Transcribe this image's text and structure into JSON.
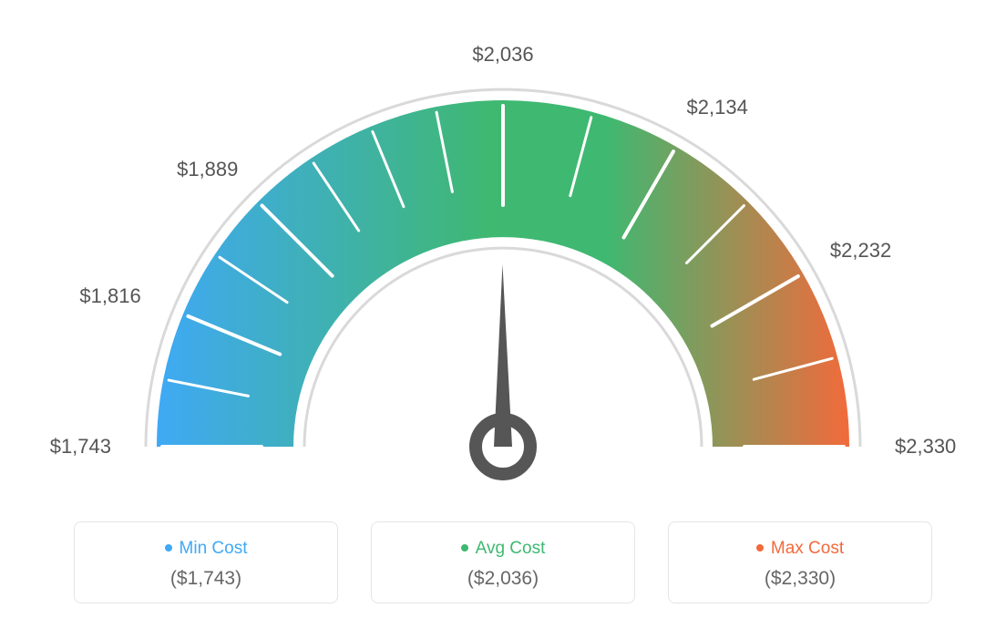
{
  "gauge": {
    "type": "gauge",
    "min": 1743,
    "max": 2330,
    "avg": 2036,
    "needle_value": 2036,
    "tick_labels": [
      "$1,743",
      "$1,816",
      "$1,889",
      "$2,036",
      "$2,134",
      "$2,232",
      "$2,330"
    ],
    "tick_angles_deg": [
      180,
      157.5,
      135,
      90,
      60,
      30,
      0
    ],
    "minor_tick_angles_deg": [
      168.75,
      146.25,
      123.75,
      112.5,
      101.25,
      75,
      45,
      15
    ],
    "arc": {
      "outer_radius": 380,
      "inner_radius": 230,
      "outline_radius": 392,
      "colors": {
        "start": "#3fa9f5",
        "mid": "#3fb871",
        "end": "#f26a3b"
      }
    },
    "outline_color": "#d9d9d9",
    "tick_major_color": "#ffffff",
    "tick_minor_color": "#ffffff",
    "needle_color": "#565656",
    "label_color": "#555555",
    "label_fontsize": 22
  },
  "legend": {
    "min": {
      "label": "Min Cost",
      "value": "($1,743)",
      "color": "#3fa9f5"
    },
    "avg": {
      "label": "Avg Cost",
      "value": "($2,036)",
      "color": "#3fb871"
    },
    "max": {
      "label": "Max Cost",
      "value": "($2,330)",
      "color": "#f26a3b"
    }
  }
}
